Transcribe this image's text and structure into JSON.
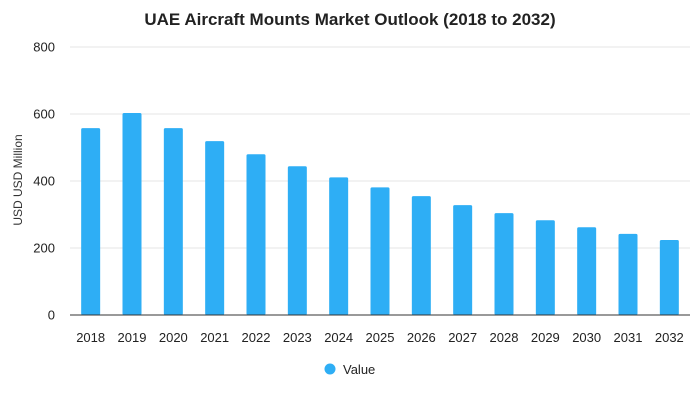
{
  "chart_data": {
    "type": "bar",
    "title": "UAE Aircraft Mounts Market Outlook (2018 to 2032)",
    "xlabel": "",
    "ylabel": "USD USD Million",
    "ylim": [
      0,
      800
    ],
    "yticks": [
      0,
      200,
      400,
      600,
      800
    ],
    "ytick_labels": [
      "0",
      "200",
      "400",
      "600",
      "800"
    ],
    "categories": [
      "2018",
      "2019",
      "2020",
      "2021",
      "2022",
      "2023",
      "2024",
      "2025",
      "2026",
      "2027",
      "2028",
      "2029",
      "2030",
      "2031",
      "2032"
    ],
    "series": [
      {
        "name": "Value",
        "color": "#2eaef5",
        "values": [
          558,
          603,
          558,
          519,
          480,
          444,
          411,
          381,
          355,
          328,
          304,
          283,
          262,
          242,
          224
        ]
      }
    ],
    "grid": true,
    "legend_position": "bottom-center"
  }
}
